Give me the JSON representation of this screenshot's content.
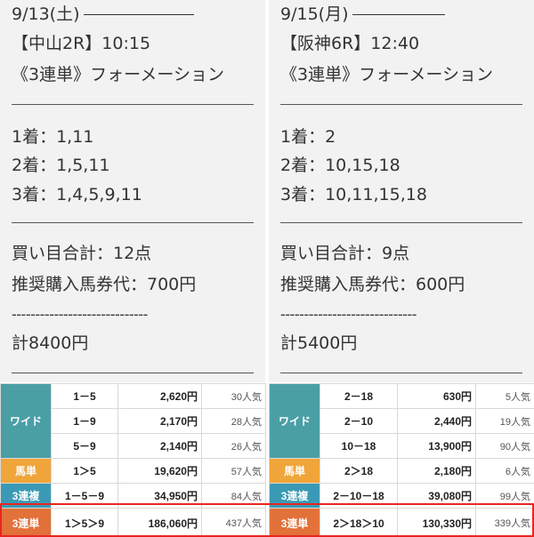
{
  "races": [
    {
      "date": "9/13(土)",
      "race": "【中山2R】10:15",
      "type": "《3連単》フォーメーション",
      "first": "1着：1,11",
      "second": "2着：1,5,11",
      "third": "3着：1,4,5,9,11",
      "points": "買い目合計：12点",
      "price": "推奨購入馬券代：700円",
      "dashes": "-----------------------------",
      "total": "計8400円"
    },
    {
      "date": "9/15(月)",
      "race": "【阪神6R】12:40",
      "type": "《3連単》フォーメーション",
      "first": "1着：2",
      "second": "2着：10,15,18",
      "third": "3着：10,11,15,18",
      "points": "買い目合計：9点",
      "price": "推奨購入馬券代：600円",
      "dashes": "-----------------------------",
      "total": "計5400円"
    }
  ],
  "payouts": [
    {
      "rows": [
        {
          "bet": "ワイド",
          "combo": "1－5",
          "pay": "2,620円",
          "pop": "30人気"
        },
        {
          "bet": "",
          "combo": "1－9",
          "pay": "2,170円",
          "pop": "28人気"
        },
        {
          "bet": "",
          "combo": "5－9",
          "pay": "2,140円",
          "pop": "26人気"
        },
        {
          "bet": "馬単",
          "combo": "1＞5",
          "pay": "19,620円",
          "pop": "57人気"
        },
        {
          "bet": "3連複",
          "combo": "1－5－9",
          "pay": "34,950円",
          "pop": "84人気"
        },
        {
          "bet": "3連単",
          "combo": "1＞5＞9",
          "pay": "186,060円",
          "pop": "437人気"
        }
      ]
    },
    {
      "rows": [
        {
          "bet": "ワイド",
          "combo": "2－18",
          "pay": "630円",
          "pop": "5人気"
        },
        {
          "bet": "",
          "combo": "2－10",
          "pay": "2,440円",
          "pop": "19人気"
        },
        {
          "bet": "",
          "combo": "10－18",
          "pay": "13,900円",
          "pop": "90人気"
        },
        {
          "bet": "馬単",
          "combo": "2＞18",
          "pay": "2,180円",
          "pop": "6人気"
        },
        {
          "bet": "3連複",
          "combo": "2－10－18",
          "pay": "39,080円",
          "pop": "99人気"
        },
        {
          "bet": "3連単",
          "combo": "2＞18＞10",
          "pay": "130,330円",
          "pop": "339人気"
        }
      ]
    }
  ],
  "colors": {
    "wide": "#4a9fa5",
    "umatan": "#f0a53a",
    "sanrenpuku": "#3a9ab5",
    "sanrentan": "#e2713a",
    "highlight": "#e8261f"
  }
}
